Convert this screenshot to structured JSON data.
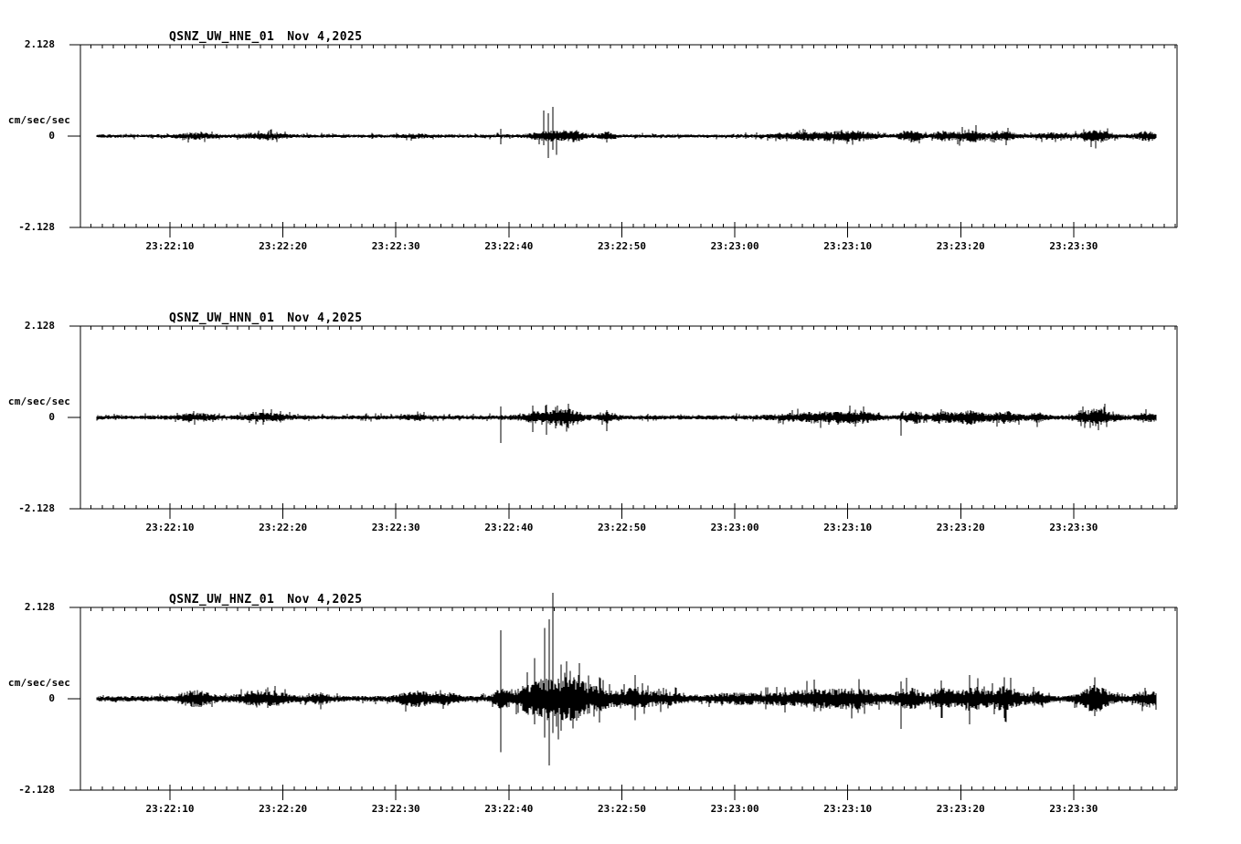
{
  "page": {
    "background": "#ffffff",
    "ink": "#000000"
  },
  "chart_data": [
    {
      "type": "line",
      "subtype": "seismogram",
      "station": "QSNZ_UW_HNE_01",
      "date": "Nov 4,2025",
      "title": "QSNZ_UW_HNE_01 Nov 4,2025",
      "ylabel": "cm/sec/sec",
      "ylim": [
        -2.128,
        2.128
      ],
      "yticks": {
        "top": "2.128",
        "zero": "0",
        "bottom": "-2.128"
      },
      "time_window": {
        "start": "23:22:02",
        "end": "23:23:39"
      },
      "minor_tick_interval_sec": 1,
      "xticks": [
        {
          "t": 10,
          "label": "23:22:10"
        },
        {
          "t": 20,
          "label": "23:22:20"
        },
        {
          "t": 30,
          "label": "23:22:30"
        },
        {
          "t": 40,
          "label": "23:22:40"
        },
        {
          "t": 50,
          "label": "23:22:50"
        },
        {
          "t": 60,
          "label": "23:23:00"
        },
        {
          "t": 70,
          "label": "23:23:10"
        },
        {
          "t": 80,
          "label": "23:23:20"
        },
        {
          "t": 90,
          "label": "23:23:30"
        }
      ],
      "noise_base": 0.04,
      "bursts": [
        {
          "t": 12.3,
          "w": 1.5,
          "a": 0.05
        },
        {
          "t": 18.3,
          "w": 2.0,
          "a": 0.05
        },
        {
          "t": 31.8,
          "w": 1.0,
          "a": 0.03
        },
        {
          "t": 43.6,
          "w": 1.6,
          "a": 0.095
        },
        {
          "t": 45.8,
          "w": 1.0,
          "a": 0.09
        },
        {
          "t": 48.7,
          "w": 0.7,
          "a": 0.07
        },
        {
          "t": 67.5,
          "w": 3.5,
          "a": 0.08
        },
        {
          "t": 71.0,
          "w": 1.5,
          "a": 0.06
        },
        {
          "t": 75.6,
          "w": 0.9,
          "a": 0.11
        },
        {
          "t": 78.4,
          "w": 0.9,
          "a": 0.09
        },
        {
          "t": 80.8,
          "w": 1.3,
          "a": 0.12
        },
        {
          "t": 83.9,
          "w": 1.0,
          "a": 0.08
        },
        {
          "t": 88.0,
          "w": 1.5,
          "a": 0.05
        },
        {
          "t": 92.0,
          "w": 1.4,
          "a": 0.11
        },
        {
          "t": 96.5,
          "w": 1.0,
          "a": 0.09
        }
      ],
      "spikes": [
        {
          "t": 39.3,
          "up": 0.17,
          "dn": 0.19
        },
        {
          "t": 43.1,
          "up": 0.6,
          "dn": 0.21
        },
        {
          "t": 43.5,
          "up": 0.53,
          "dn": 0.51
        },
        {
          "t": 43.9,
          "up": 0.68,
          "dn": 0.32
        },
        {
          "t": 44.2,
          "up": 0.12,
          "dn": 0.44
        }
      ]
    },
    {
      "type": "line",
      "subtype": "seismogram",
      "station": "QSNZ_UW_HNN_01",
      "date": "Nov 4,2025",
      "title": "QSNZ_UW_HNN_01 Nov 4,2025",
      "ylabel": "cm/sec/sec",
      "ylim": [
        -2.128,
        2.128
      ],
      "yticks": {
        "top": "2.128",
        "zero": "0",
        "bottom": "-2.128"
      },
      "time_window": {
        "start": "23:22:02",
        "end": "23:23:39"
      },
      "minor_tick_interval_sec": 1,
      "xticks": [
        {
          "t": 10,
          "label": "23:22:10"
        },
        {
          "t": 20,
          "label": "23:22:20"
        },
        {
          "t": 30,
          "label": "23:22:30"
        },
        {
          "t": 40,
          "label": "23:22:40"
        },
        {
          "t": 50,
          "label": "23:22:50"
        },
        {
          "t": 60,
          "label": "23:23:00"
        },
        {
          "t": 70,
          "label": "23:23:10"
        },
        {
          "t": 80,
          "label": "23:23:20"
        },
        {
          "t": 90,
          "label": "23:23:30"
        }
      ],
      "noise_base": 0.05,
      "bursts": [
        {
          "t": 12.3,
          "w": 1.5,
          "a": 0.065
        },
        {
          "t": 18.5,
          "w": 2.0,
          "a": 0.065
        },
        {
          "t": 31.8,
          "w": 1.0,
          "a": 0.04
        },
        {
          "t": 43.5,
          "w": 2.2,
          "a": 0.13
        },
        {
          "t": 45.5,
          "w": 1.0,
          "a": 0.11
        },
        {
          "t": 48.7,
          "w": 0.7,
          "a": 0.09
        },
        {
          "t": 67.5,
          "w": 3.5,
          "a": 0.095
        },
        {
          "t": 71.0,
          "w": 1.5,
          "a": 0.07
        },
        {
          "t": 75.8,
          "w": 0.9,
          "a": 0.12
        },
        {
          "t": 78.4,
          "w": 0.9,
          "a": 0.11
        },
        {
          "t": 80.8,
          "w": 1.3,
          "a": 0.13
        },
        {
          "t": 84.0,
          "w": 1.3,
          "a": 0.1
        },
        {
          "t": 86.8,
          "w": 0.9,
          "a": 0.07
        },
        {
          "t": 92.0,
          "w": 1.6,
          "a": 0.16
        },
        {
          "t": 96.5,
          "w": 1.0,
          "a": 0.08
        }
      ],
      "spikes": [
        {
          "t": 39.3,
          "up": 0.26,
          "dn": 0.6
        },
        {
          "t": 42.1,
          "up": 0.28,
          "dn": 0.34
        },
        {
          "t": 43.3,
          "up": 0.3,
          "dn": 0.4
        },
        {
          "t": 44.1,
          "up": 0.24,
          "dn": 0.26
        },
        {
          "t": 45.3,
          "up": 0.32,
          "dn": 0.26
        },
        {
          "t": 48.7,
          "up": 0.17,
          "dn": 0.32
        },
        {
          "t": 74.7,
          "up": 0.1,
          "dn": 0.43
        },
        {
          "t": 92.2,
          "up": 0.15,
          "dn": 0.3
        }
      ]
    },
    {
      "type": "line",
      "subtype": "seismogram",
      "station": "QSNZ_UW_HNZ_01",
      "date": "Nov 4,2025",
      "title": "QSNZ_UW_HNZ_01 Nov 4,2025",
      "ylabel": "cm/sec/sec",
      "ylim": [
        -2.128,
        2.128
      ],
      "yticks": {
        "top": "2.128",
        "zero": "0",
        "bottom": "-2.128"
      },
      "time_window": {
        "start": "23:22:02",
        "end": "23:23:39"
      },
      "minor_tick_interval_sec": 1,
      "xticks": [
        {
          "t": 10,
          "label": "23:22:10"
        },
        {
          "t": 20,
          "label": "23:22:20"
        },
        {
          "t": 30,
          "label": "23:22:30"
        },
        {
          "t": 40,
          "label": "23:22:40"
        },
        {
          "t": 50,
          "label": "23:22:50"
        },
        {
          "t": 60,
          "label": "23:23:00"
        },
        {
          "t": 70,
          "label": "23:23:10"
        },
        {
          "t": 80,
          "label": "23:23:20"
        },
        {
          "t": 90,
          "label": "23:23:30"
        }
      ],
      "noise_base": 0.065,
      "bursts": [
        {
          "t": 12.3,
          "w": 1.5,
          "a": 0.15
        },
        {
          "t": 18.3,
          "w": 2.0,
          "a": 0.16
        },
        {
          "t": 23.3,
          "w": 1.0,
          "a": 0.08
        },
        {
          "t": 31.8,
          "w": 1.5,
          "a": 0.14
        },
        {
          "t": 34.6,
          "w": 1.0,
          "a": 0.09
        },
        {
          "t": 39.3,
          "w": 0.6,
          "a": 0.18
        },
        {
          "t": 43.0,
          "w": 2.4,
          "a": 0.42
        },
        {
          "t": 45.6,
          "w": 1.4,
          "a": 0.28
        },
        {
          "t": 47.8,
          "w": 1.8,
          "a": 0.2
        },
        {
          "t": 51.0,
          "w": 1.5,
          "a": 0.18
        },
        {
          "t": 53.5,
          "w": 2.0,
          "a": 0.11
        },
        {
          "t": 60.0,
          "w": 3.0,
          "a": 0.08
        },
        {
          "t": 67.0,
          "w": 3.5,
          "a": 0.17
        },
        {
          "t": 71.0,
          "w": 2.0,
          "a": 0.14
        },
        {
          "t": 75.4,
          "w": 1.3,
          "a": 0.21
        },
        {
          "t": 78.4,
          "w": 1.0,
          "a": 0.19
        },
        {
          "t": 81.0,
          "w": 1.4,
          "a": 0.23
        },
        {
          "t": 84.0,
          "w": 1.4,
          "a": 0.23
        },
        {
          "t": 86.8,
          "w": 0.9,
          "a": 0.12
        },
        {
          "t": 91.9,
          "w": 1.4,
          "a": 0.26
        },
        {
          "t": 96.5,
          "w": 1.1,
          "a": 0.14
        }
      ],
      "spikes": [
        {
          "t": 39.3,
          "up": 1.6,
          "dn": 1.24
        },
        {
          "t": 42.3,
          "up": 0.95,
          "dn": 0.6
        },
        {
          "t": 43.2,
          "up": 1.65,
          "dn": 0.9
        },
        {
          "t": 43.6,
          "up": 1.85,
          "dn": 1.55
        },
        {
          "t": 43.9,
          "up": 2.47,
          "dn": 0.8
        },
        {
          "t": 44.6,
          "up": 0.8,
          "dn": 0.75
        },
        {
          "t": 45.4,
          "up": 0.65,
          "dn": 0.5
        },
        {
          "t": 46.2,
          "up": 0.55,
          "dn": 0.45
        },
        {
          "t": 48.0,
          "up": 0.5,
          "dn": 0.55
        },
        {
          "t": 51.2,
          "up": 0.55,
          "dn": 0.5
        },
        {
          "t": 67.0,
          "up": 0.45,
          "dn": 0.3
        },
        {
          "t": 74.7,
          "up": 0.4,
          "dn": 0.7
        },
        {
          "t": 80.8,
          "up": 0.55,
          "dn": 0.6
        },
        {
          "t": 83.9,
          "up": 0.5,
          "dn": 0.45
        },
        {
          "t": 91.9,
          "up": 0.5,
          "dn": 0.4
        }
      ]
    }
  ]
}
